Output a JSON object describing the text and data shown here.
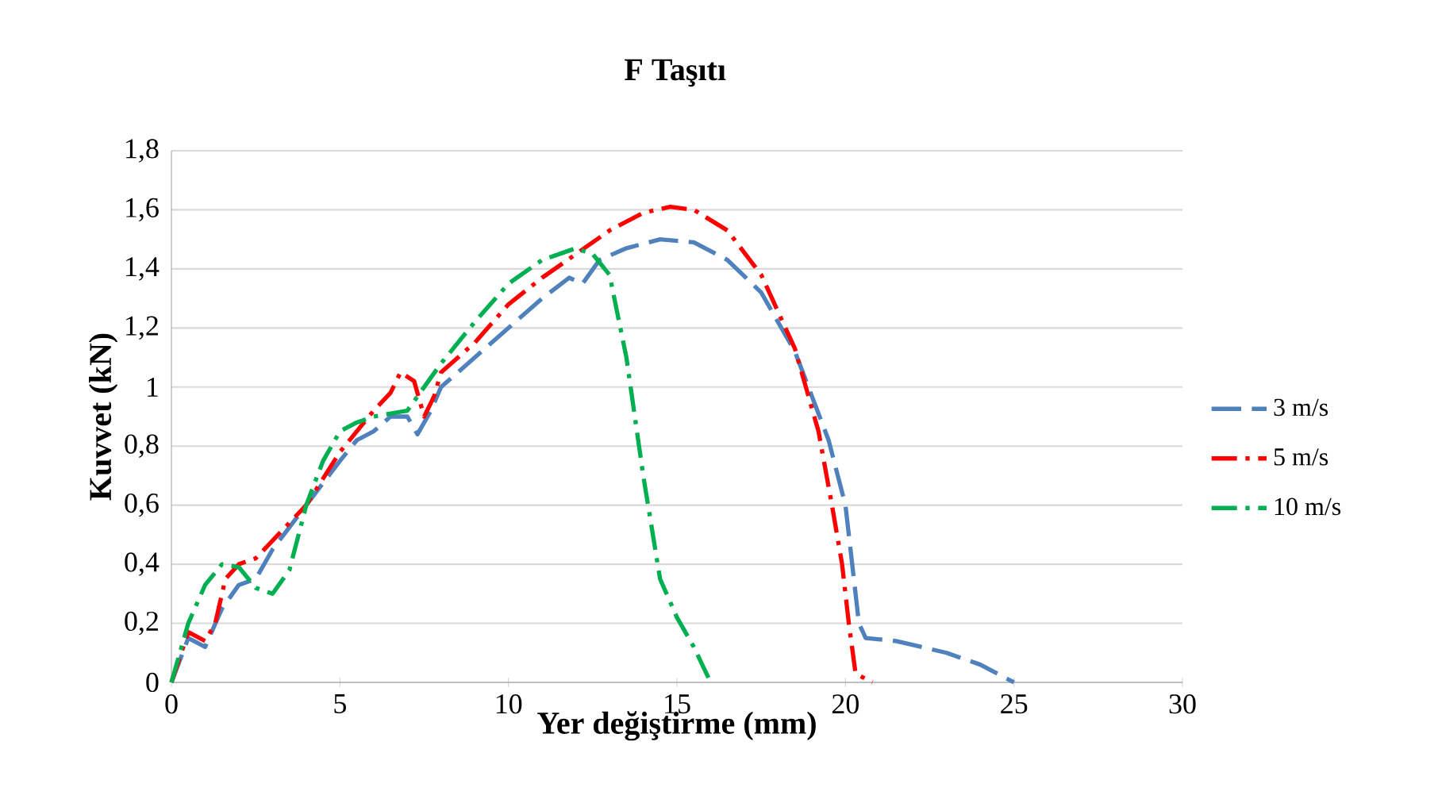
{
  "chart_data": {
    "type": "line",
    "title": "F Taşıtı",
    "xlabel": "Yer değiştirme (mm)",
    "ylabel": "Kuvvet (kN)",
    "xlim": [
      0,
      30
    ],
    "xticks": [
      0,
      5,
      10,
      15,
      20,
      25,
      30
    ],
    "ylim": [
      0,
      1.8
    ],
    "yticks": [
      0,
      {
        "value": 0.2,
        "label": "0,2"
      },
      {
        "value": 0.4,
        "label": "0,4"
      },
      {
        "value": 0.6,
        "label": "0,6"
      },
      {
        "value": 0.8,
        "label": "0,8"
      },
      1,
      {
        "value": 1.2,
        "label": "1,2"
      },
      {
        "value": 1.4,
        "label": "1,4"
      },
      {
        "value": 1.6,
        "label": "1,6"
      },
      {
        "value": 1.8,
        "label": "1,8"
      }
    ],
    "grid": "y",
    "legend": "right",
    "marker": "none",
    "series": [
      {
        "name": "3 m/s",
        "color": "#4f81bd",
        "line_style": "dashed",
        "x": [
          0,
          0.5,
          1,
          1.5,
          2,
          2.5,
          3,
          4,
          5,
          5.5,
          6,
          6.5,
          7,
          7.3,
          7.7,
          8,
          9,
          10,
          11,
          11.8,
          12.2,
          12.7,
          13.5,
          14.5,
          15.5,
          16.5,
          17.5,
          18.5,
          19.5,
          20,
          20.2,
          20.4,
          20.6,
          21.5,
          23,
          24,
          25
        ],
        "values": [
          0,
          0.15,
          0.12,
          0.25,
          0.33,
          0.35,
          0.45,
          0.6,
          0.75,
          0.82,
          0.85,
          0.9,
          0.9,
          0.84,
          0.92,
          1.0,
          1.1,
          1.2,
          1.3,
          1.37,
          1.35,
          1.43,
          1.47,
          1.5,
          1.49,
          1.43,
          1.32,
          1.12,
          0.82,
          0.6,
          0.4,
          0.2,
          0.15,
          0.14,
          0.1,
          0.06,
          0
        ]
      },
      {
        "name": "5 m/s",
        "color": "#ff0000",
        "line_style": "dashdot",
        "x": [
          0,
          0.5,
          1,
          1.3,
          1.6,
          2,
          2.5,
          3,
          4,
          5,
          6,
          6.5,
          6.8,
          7.2,
          7.5,
          7.8,
          8,
          9,
          10,
          11,
          12,
          13,
          14,
          14.8,
          15.5,
          16.5,
          17.5,
          18.5,
          19.2,
          19.6,
          19.9,
          20.1,
          20.3,
          20.8
        ],
        "values": [
          0,
          0.17,
          0.14,
          0.2,
          0.35,
          0.4,
          0.42,
          0.48,
          0.6,
          0.78,
          0.92,
          0.98,
          1.05,
          1.02,
          0.9,
          0.97,
          1.05,
          1.15,
          1.28,
          1.37,
          1.45,
          1.53,
          1.59,
          1.61,
          1.6,
          1.53,
          1.38,
          1.13,
          0.85,
          0.6,
          0.4,
          0.2,
          0.03,
          0
        ]
      },
      {
        "name": "10 m/s",
        "color": "#00b050",
        "line_style": "dashdot",
        "x": [
          0,
          0.5,
          1,
          1.5,
          2,
          2.5,
          3,
          3.5,
          4,
          4.5,
          5,
          5.5,
          6,
          7,
          8,
          9,
          10,
          11,
          12,
          12.5,
          13,
          13.5,
          14,
          14.5,
          15,
          15.5,
          16
        ],
        "values": [
          0,
          0.2,
          0.33,
          0.4,
          0.39,
          0.32,
          0.3,
          0.38,
          0.6,
          0.75,
          0.85,
          0.88,
          0.9,
          0.92,
          1.08,
          1.22,
          1.35,
          1.43,
          1.47,
          1.45,
          1.38,
          1.1,
          0.7,
          0.35,
          0.22,
          0.12,
          0
        ]
      }
    ]
  }
}
